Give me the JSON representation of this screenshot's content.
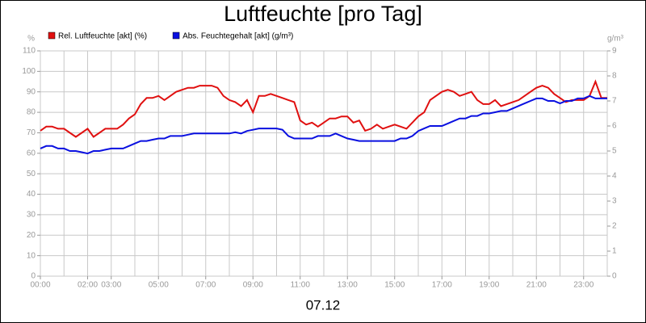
{
  "chart_data": {
    "type": "line",
    "title": "Luftfeuchte [pro Tag]",
    "xlabel": "07.12",
    "ylabel": "%",
    "y2label": "g/m³",
    "x": [
      0,
      0.25,
      0.5,
      0.75,
      1,
      1.25,
      1.5,
      1.75,
      2,
      2.25,
      2.5,
      2.75,
      3,
      3.25,
      3.5,
      3.75,
      4,
      4.25,
      4.5,
      4.75,
      5,
      5.25,
      5.5,
      5.75,
      6,
      6.25,
      6.5,
      6.75,
      7,
      7.25,
      7.5,
      7.75,
      8,
      8.25,
      8.5,
      8.75,
      9,
      9.25,
      9.5,
      9.75,
      10,
      10.25,
      10.5,
      10.75,
      11,
      11.25,
      11.5,
      11.75,
      12,
      12.25,
      12.5,
      12.75,
      13,
      13.25,
      13.5,
      13.75,
      14,
      14.25,
      14.5,
      14.75,
      15,
      15.25,
      15.5,
      15.75,
      16,
      16.25,
      16.5,
      16.75,
      17,
      17.25,
      17.5,
      17.75,
      18,
      18.25,
      18.5,
      18.75,
      19,
      19.25,
      19.5,
      19.75,
      20,
      20.25,
      20.5,
      20.75,
      21,
      21.25,
      21.5,
      21.75,
      22,
      22.25,
      22.5,
      22.75,
      23,
      23.25,
      23.5,
      23.75,
      24
    ],
    "series": [
      {
        "name": "Rel. Luftfeuchte [akt] (%)",
        "color": "#e01010",
        "axis": "y",
        "values": [
          71,
          73,
          73,
          72,
          72,
          70,
          68,
          70,
          72,
          68,
          70,
          72,
          72,
          72,
          74,
          77,
          79,
          84,
          87,
          87,
          88,
          86,
          88,
          90,
          91,
          92,
          92,
          93,
          93,
          93,
          92,
          88,
          86,
          85,
          83,
          86,
          80,
          88,
          88,
          89,
          88,
          87,
          86,
          85,
          76,
          74,
          75,
          73,
          75,
          77,
          77,
          78,
          78,
          75,
          76,
          71,
          72,
          74,
          72,
          73,
          74,
          73,
          72,
          75,
          78,
          80,
          86,
          88,
          90,
          91,
          90,
          88,
          89,
          90,
          86,
          84,
          84,
          86,
          83,
          84,
          85,
          86,
          88,
          90,
          92,
          93,
          92,
          89,
          87,
          85,
          86,
          86,
          86,
          88,
          95,
          87,
          87
        ]
      },
      {
        "name": "Abs. Feuchtegehalt [akt] (g/m³)",
        "color": "#0a10e0",
        "axis": "y2",
        "values": [
          5.1,
          5.2,
          5.2,
          5.1,
          5.1,
          5.0,
          5.0,
          4.95,
          4.9,
          5.0,
          5.0,
          5.05,
          5.1,
          5.1,
          5.1,
          5.2,
          5.3,
          5.4,
          5.4,
          5.45,
          5.5,
          5.5,
          5.6,
          5.6,
          5.6,
          5.65,
          5.7,
          5.7,
          5.7,
          5.7,
          5.7,
          5.7,
          5.7,
          5.75,
          5.7,
          5.8,
          5.85,
          5.9,
          5.9,
          5.9,
          5.9,
          5.85,
          5.6,
          5.5,
          5.5,
          5.5,
          5.5,
          5.6,
          5.6,
          5.6,
          5.7,
          5.6,
          5.5,
          5.45,
          5.4,
          5.4,
          5.4,
          5.4,
          5.4,
          5.4,
          5.4,
          5.5,
          5.5,
          5.6,
          5.8,
          5.9,
          6.0,
          6.0,
          6.0,
          6.1,
          6.2,
          6.3,
          6.3,
          6.4,
          6.4,
          6.5,
          6.5,
          6.55,
          6.6,
          6.6,
          6.7,
          6.8,
          6.9,
          7.0,
          7.1,
          7.1,
          7.0,
          7.0,
          6.9,
          7.0,
          7.0,
          7.1,
          7.1,
          7.2,
          7.1,
          7.1,
          7.1
        ]
      }
    ],
    "xlim": [
      0,
      24
    ],
    "xticks": [
      {
        "value": 0,
        "label": "00:00"
      },
      {
        "value": 2,
        "label": "02:00"
      },
      {
        "value": 3,
        "label": "03:00"
      },
      {
        "value": 5,
        "label": "05:00"
      },
      {
        "value": 7,
        "label": "07:00"
      },
      {
        "value": 9,
        "label": "09:00"
      },
      {
        "value": 11,
        "label": "11:00"
      },
      {
        "value": 13,
        "label": "13:00"
      },
      {
        "value": 15,
        "label": "15:00"
      },
      {
        "value": 17,
        "label": "17:00"
      },
      {
        "value": 19,
        "label": "19:00"
      },
      {
        "value": 21,
        "label": "21:00"
      },
      {
        "value": 23,
        "label": "23:00"
      }
    ],
    "xgrid": [
      0,
      1,
      2,
      3,
      4,
      5,
      6,
      7,
      8,
      9,
      10,
      11,
      12,
      13,
      14,
      15,
      16,
      17,
      18,
      19,
      20,
      21,
      22,
      23,
      24
    ],
    "ylim": [
      0,
      110
    ],
    "yticks": [
      0,
      10,
      20,
      30,
      40,
      50,
      60,
      70,
      80,
      90,
      100,
      110
    ],
    "y2lim": [
      0,
      9
    ],
    "y2ticks": [
      0,
      1,
      2,
      3,
      4,
      5,
      6,
      7,
      8,
      9
    ],
    "grid": true,
    "legend": "top-left"
  }
}
